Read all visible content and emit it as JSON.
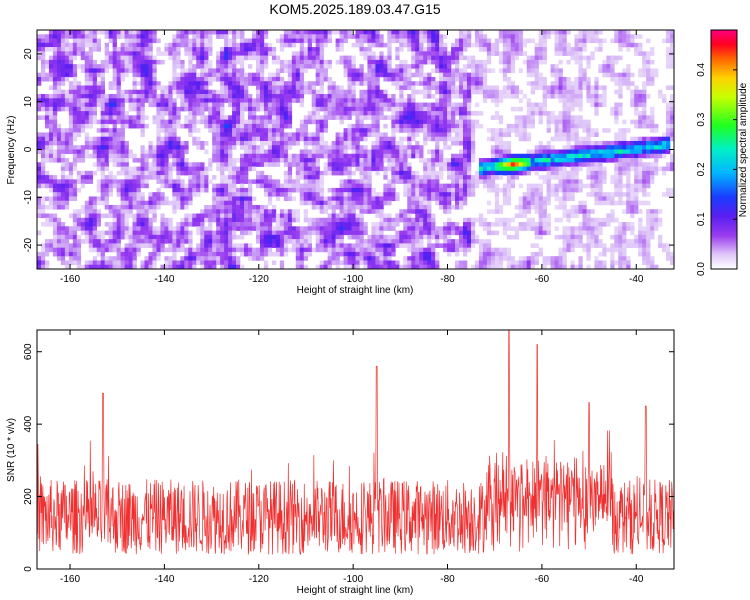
{
  "title": "KOM5.2025.189.03.47.G15",
  "chart_data": [
    {
      "type": "heatmap",
      "xlabel": "Height of straight line (km)",
      "ylabel": "Frequency (Hz)",
      "xlim": [
        -167,
        -32
      ],
      "ylim": [
        -25,
        25
      ],
      "xticks": [
        -160,
        -140,
        -120,
        -100,
        -80,
        -60,
        -40
      ],
      "yticks": [
        -20,
        -10,
        0,
        10,
        20
      ],
      "colorbar": {
        "label": "Normalized spectral amplitude",
        "range": [
          0,
          0.48
        ],
        "ticks": [
          "0.0",
          "0.1",
          "0.2",
          "0.3",
          "0.4"
        ],
        "colormap": "rainbow (white-violet-blue-cyan-green-yellow-red-magenta)"
      },
      "features": [
        {
          "name": "background noise",
          "x_range": [
            -167,
            -32
          ],
          "freq_range": [
            -25,
            25
          ],
          "amplitude": "0.03-0.10"
        },
        {
          "name": "signal trace",
          "from": {
            "x": -73,
            "freq": -4
          },
          "to": {
            "x": -33,
            "freq": 1
          },
          "peak_amplitude": 0.45,
          "peak_at": {
            "x": -66,
            "freq": -3
          }
        }
      ]
    },
    {
      "type": "line",
      "xlabel": "Height of straight line (km)",
      "ylabel": "SNR (10 * v/v)",
      "xlim": [
        -167,
        -32
      ],
      "ylim": [
        0,
        660
      ],
      "xticks": [
        -160,
        -140,
        -120,
        -100,
        -80,
        -60,
        -40
      ],
      "yticks": [
        0,
        200,
        400,
        600
      ],
      "color": "#f03030",
      "baseline_range": [
        40,
        300
      ],
      "peaks": [
        {
          "x": -153,
          "y": 485
        },
        {
          "x": -95,
          "y": 560
        },
        {
          "x": -67,
          "y": 660
        },
        {
          "x": -61,
          "y": 620
        },
        {
          "x": -50,
          "y": 460
        },
        {
          "x": -38,
          "y": 450
        }
      ]
    }
  ],
  "colors": {
    "snr_line": "#f03030",
    "axes": "#000000"
  }
}
